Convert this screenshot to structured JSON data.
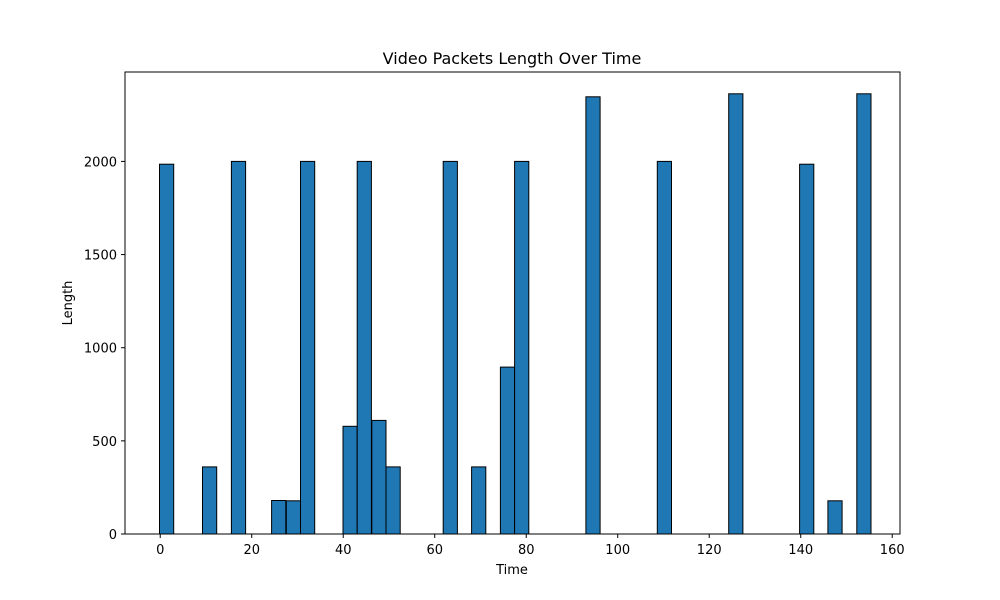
{
  "chart_data": {
    "type": "bar",
    "title": "Video Packets Length Over Time",
    "xlabel": "Time",
    "ylabel": "Length",
    "xlim": [
      -7.7,
      161.7
    ],
    "ylim": [
      0,
      2480
    ],
    "xticks": [
      0,
      20,
      40,
      60,
      80,
      100,
      120,
      140,
      160
    ],
    "yticks": [
      0,
      500,
      1000,
      1500,
      2000
    ],
    "bar_width": 3.1,
    "grid": false,
    "legend": "none",
    "color": "#1f77b4",
    "edgecolor": "#000000",
    "x": [
      1.4,
      10.8,
      17.1,
      25.9,
      29.1,
      32.2,
      41.5,
      44.6,
      47.8,
      50.9,
      63.4,
      69.6,
      75.9,
      79.0,
      94.6,
      110.2,
      125.8,
      141.3,
      147.5,
      153.8
    ],
    "values": [
      1985,
      360,
      2000,
      180,
      178,
      2000,
      578,
      2000,
      610,
      360,
      2000,
      360,
      896,
      2000,
      2347,
      2000,
      2363,
      1985,
      178,
      2363
    ]
  }
}
